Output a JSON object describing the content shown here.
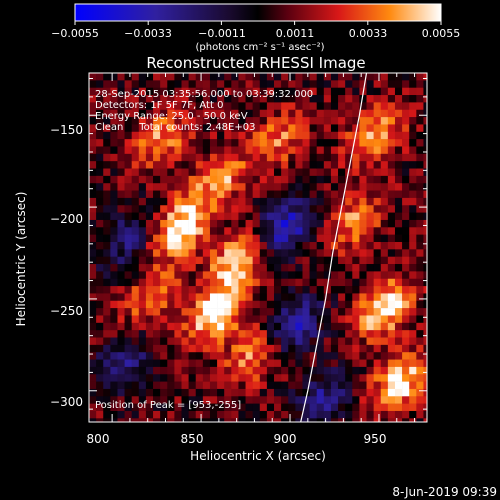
{
  "colorbar": {
    "ticks": [
      -0.0055,
      -0.0033,
      -0.0011,
      0.0011,
      0.0033,
      0.0055
    ],
    "tick_labels": [
      "−0.0055",
      "−0.0033",
      "−0.0011",
      "0.0011",
      "0.0033",
      "0.0055"
    ],
    "unit_label": "(photons cm⁻² s⁻¹ asec⁻²)",
    "range": [
      -0.0055,
      0.0055
    ]
  },
  "title": "Reconstructed RHESSI Image",
  "annotations": [
    "28-Sep-2015 03:35:56.000 to 03:39:32.000",
    "Detectors: 1F 5F 7F, Att 0",
    "Energy Range: 25.0 - 50.0 keV",
    "Clean     Total counts: 2.48E+03"
  ],
  "peak_label": "Position of Peak = [953,-255]",
  "footer_date": "8-Jun-2019 09:39",
  "chart_data": {
    "type": "heatmap",
    "title": "Reconstructed RHESSI Image",
    "xlabel": "Heliocentric X (arcsec)",
    "ylabel": "Heliocentric Y (arcsec)",
    "xlim": [
      787,
      977
    ],
    "ylim": [
      -317,
      -127
    ],
    "x_ticks": [
      800,
      850,
      900,
      950
    ],
    "x_tick_labels": [
      "800",
      "850",
      "900",
      "950"
    ],
    "y_ticks": [
      -150,
      -200,
      -250,
      -300
    ],
    "y_tick_labels": [
      "−150",
      "−200",
      "−250",
      "−300"
    ],
    "value_range": [
      -0.0055,
      0.0055
    ],
    "colormap": "hot-blue diverging (blue → black → red → yellow → white)",
    "peak_position": [
      953,
      -255
    ],
    "limb_curve": {
      "x": [
        943,
        939,
        934,
        929,
        924,
        920,
        915,
        910,
        906
      ],
      "y": [
        -127,
        -150,
        -175,
        -200,
        -225,
        -250,
        -275,
        -300,
        -317
      ]
    },
    "sources": [
      {
        "x": 828,
        "y": -163,
        "amp": 0.0032
      },
      {
        "x": 860,
        "y": -185,
        "amp": 0.0035
      },
      {
        "x": 893,
        "y": -163,
        "amp": 0.0028
      },
      {
        "x": 838,
        "y": -212,
        "amp": 0.0052
      },
      {
        "x": 870,
        "y": -230,
        "amp": 0.0042
      },
      {
        "x": 858,
        "y": -258,
        "amp": 0.005
      },
      {
        "x": 880,
        "y": -280,
        "amp": 0.0034
      },
      {
        "x": 822,
        "y": -250,
        "amp": 0.0027
      },
      {
        "x": 948,
        "y": -160,
        "amp": 0.0038
      },
      {
        "x": 953,
        "y": -255,
        "amp": 0.0048
      },
      {
        "x": 962,
        "y": -295,
        "amp": 0.0046
      },
      {
        "x": 936,
        "y": -208,
        "amp": 0.003
      }
    ],
    "negative_lobes": [
      {
        "x": 898,
        "y": -210,
        "amp": -0.0045
      },
      {
        "x": 902,
        "y": -265,
        "amp": -0.004
      },
      {
        "x": 808,
        "y": -218,
        "amp": -0.0028
      },
      {
        "x": 918,
        "y": -305,
        "amp": -0.0032
      },
      {
        "x": 806,
        "y": -285,
        "amp": -0.003
      }
    ]
  }
}
